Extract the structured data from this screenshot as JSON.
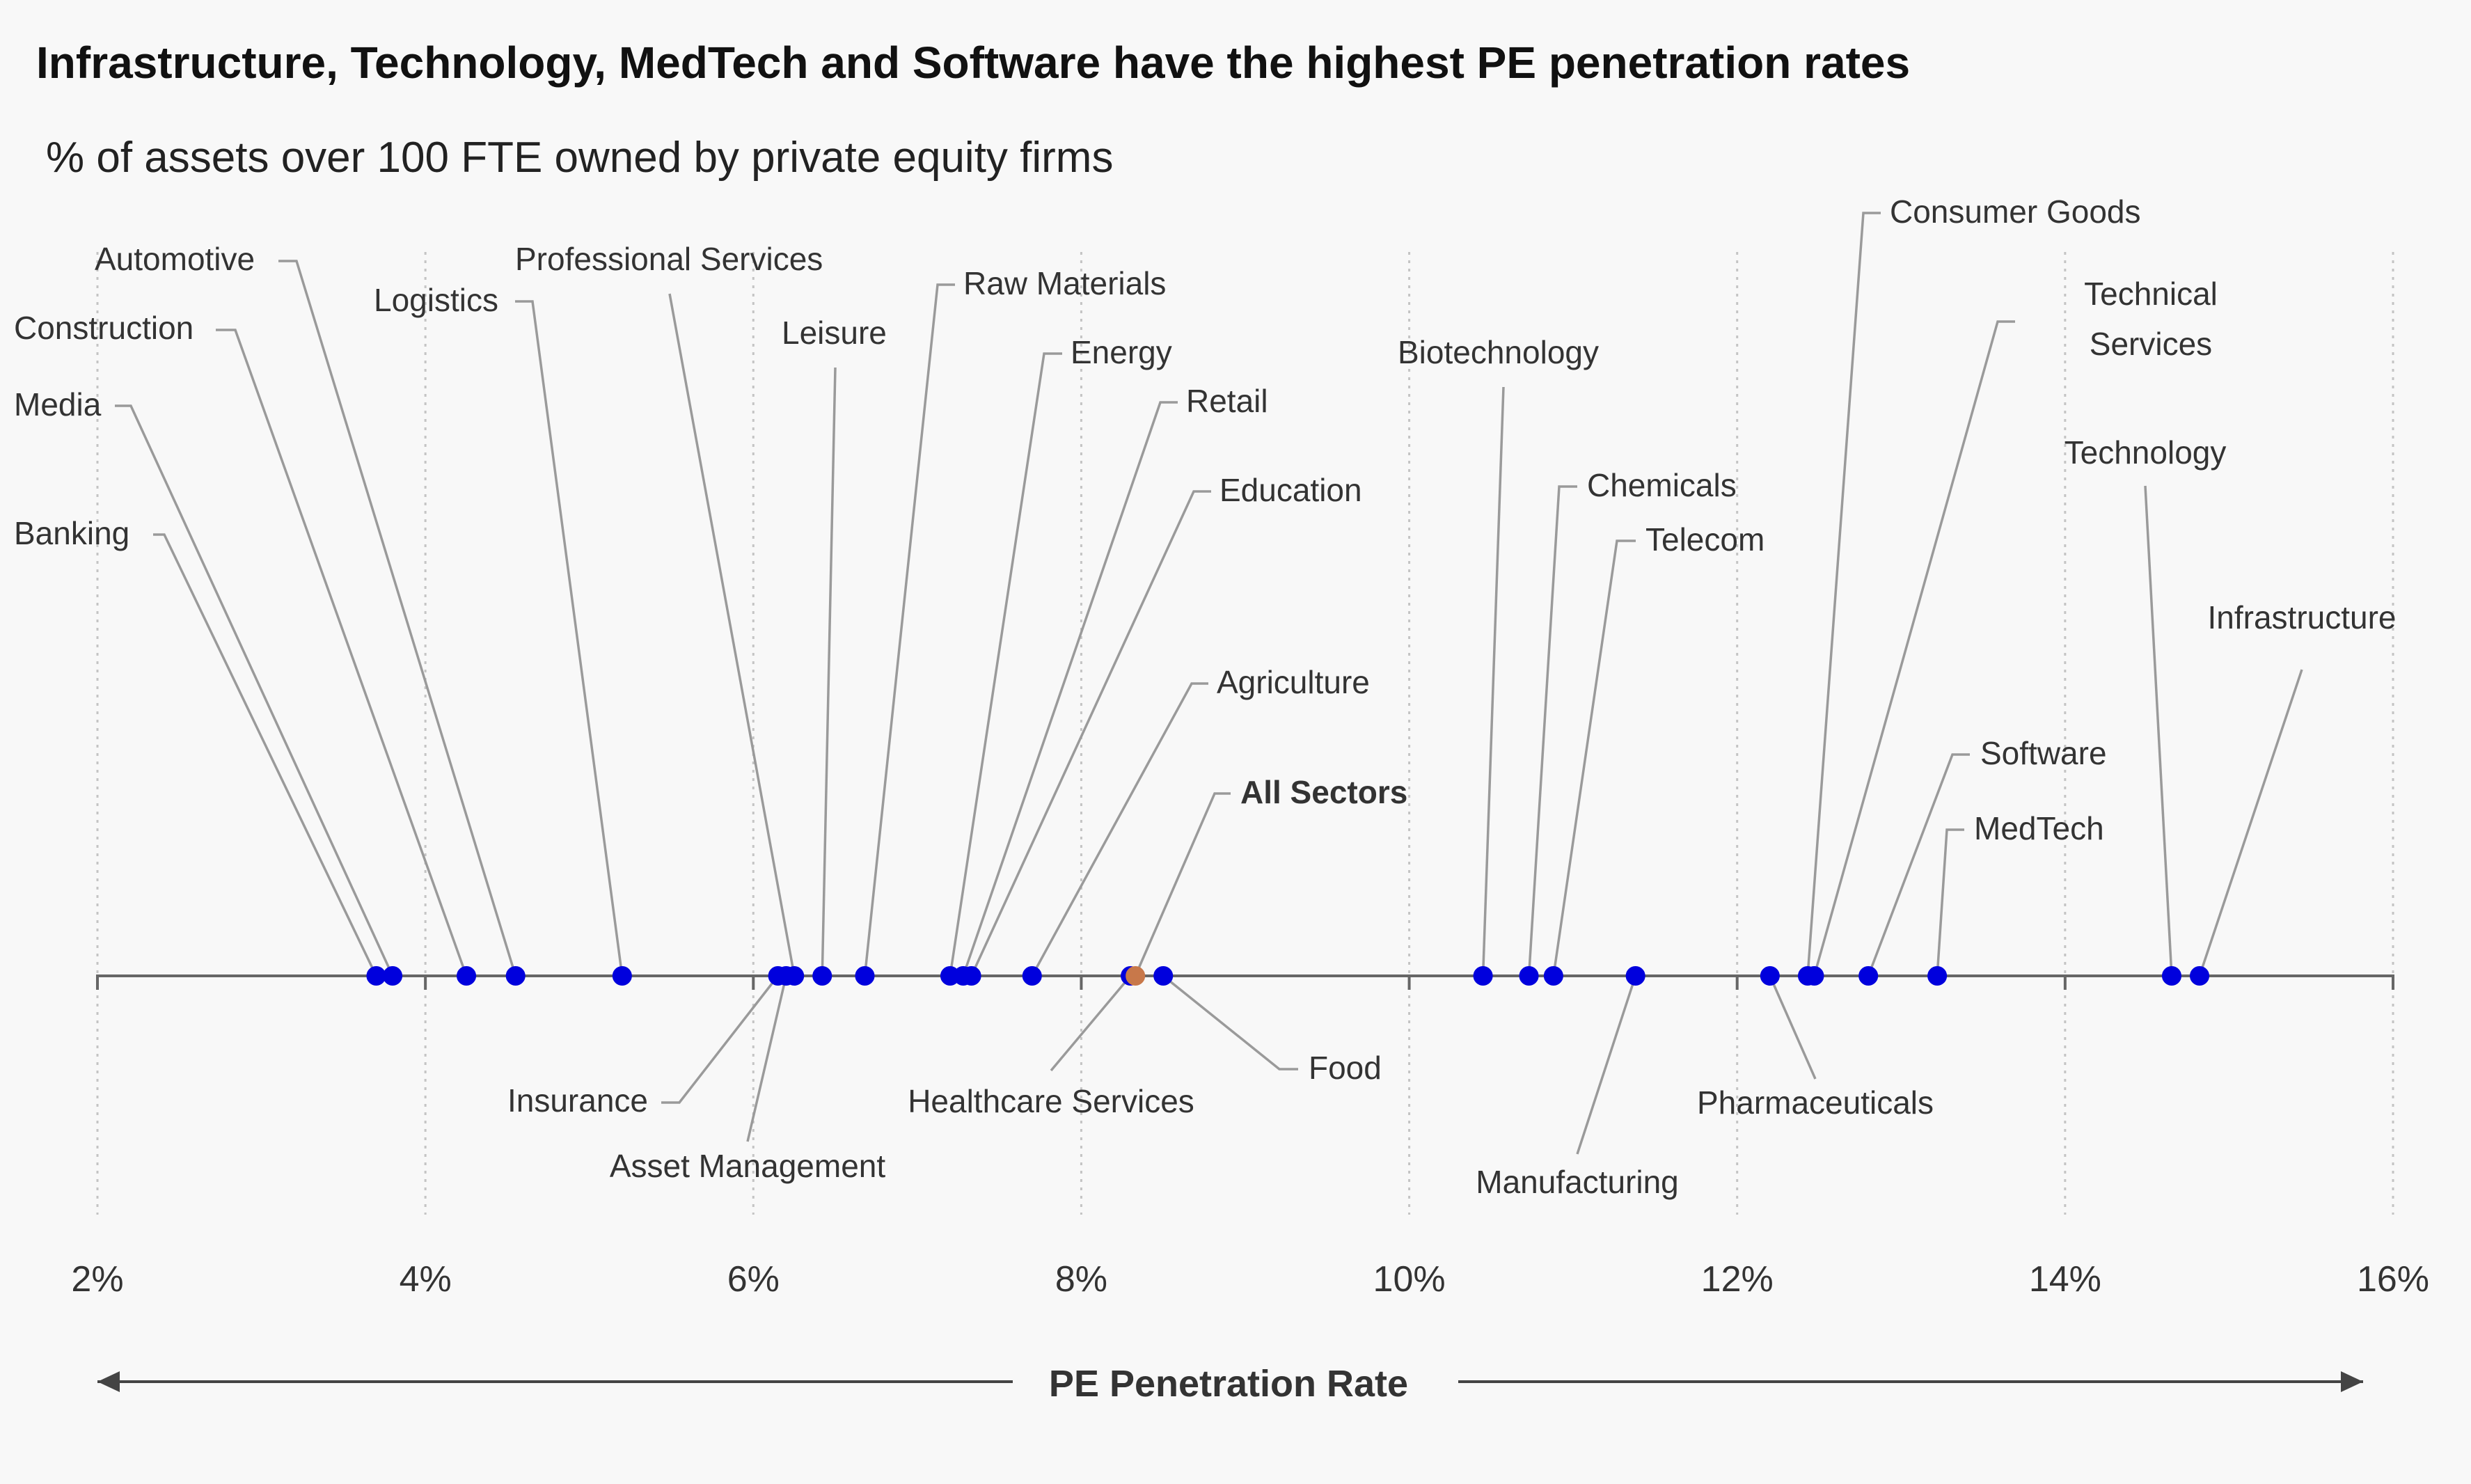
{
  "chart_data": {
    "type": "scatter",
    "title": "Infrastructure, Technology, MedTech and Software have the highest PE penetration rates",
    "subtitle": "% of assets over 100 FTE owned by private equity firms",
    "xlabel": "PE Penetration Rate",
    "xlim": [
      2,
      16
    ],
    "tick_values": [
      2,
      4,
      6,
      8,
      10,
      12,
      14,
      16
    ],
    "tick_labels": [
      "2%",
      "4%",
      "6%",
      "8%",
      "10%",
      "12%",
      "14%",
      "16%"
    ],
    "colors": {
      "point": "#0000dd",
      "highlight": "#c8784a",
      "leader": "#9a9a9a",
      "axis": "#666666"
    },
    "points": [
      {
        "name": "Banking",
        "value": 3.7,
        "highlight": false
      },
      {
        "name": "Media",
        "value": 3.8,
        "highlight": false
      },
      {
        "name": "Construction",
        "value": 4.25,
        "highlight": false
      },
      {
        "name": "Automotive",
        "value": 4.55,
        "highlight": false
      },
      {
        "name": "Logistics",
        "value": 5.2,
        "highlight": false
      },
      {
        "name": "Insurance",
        "value": 6.15,
        "highlight": false
      },
      {
        "name": "Asset Management",
        "value": 6.2,
        "highlight": false
      },
      {
        "name": "Professional Services",
        "value": 6.25,
        "highlight": false
      },
      {
        "name": "Leisure",
        "value": 6.42,
        "highlight": false
      },
      {
        "name": "Raw Materials",
        "value": 6.68,
        "highlight": false
      },
      {
        "name": "Energy",
        "value": 7.2,
        "highlight": false
      },
      {
        "name": "Retail",
        "value": 7.28,
        "highlight": false
      },
      {
        "name": "Education",
        "value": 7.33,
        "highlight": false
      },
      {
        "name": "Agriculture",
        "value": 7.7,
        "highlight": false
      },
      {
        "name": "Healthcare Services",
        "value": 8.3,
        "highlight": false
      },
      {
        "name": "All Sectors",
        "value": 8.33,
        "highlight": true
      },
      {
        "name": "Food",
        "value": 8.5,
        "highlight": false
      },
      {
        "name": "Biotechnology",
        "value": 10.45,
        "highlight": false
      },
      {
        "name": "Chemicals",
        "value": 10.73,
        "highlight": false
      },
      {
        "name": "Telecom",
        "value": 10.88,
        "highlight": false
      },
      {
        "name": "Manufacturing",
        "value": 11.38,
        "highlight": false
      },
      {
        "name": "Pharmaceuticals",
        "value": 12.2,
        "highlight": false
      },
      {
        "name": "Consumer Goods",
        "value": 12.43,
        "highlight": false
      },
      {
        "name": "Technical Services",
        "value": 12.47,
        "highlight": false
      },
      {
        "name": "Software",
        "value": 12.8,
        "highlight": false
      },
      {
        "name": "MedTech",
        "value": 13.22,
        "highlight": false
      },
      {
        "name": "Technology",
        "value": 14.65,
        "highlight": false
      },
      {
        "name": "Infrastructure",
        "value": 14.82,
        "highlight": false
      }
    ]
  }
}
